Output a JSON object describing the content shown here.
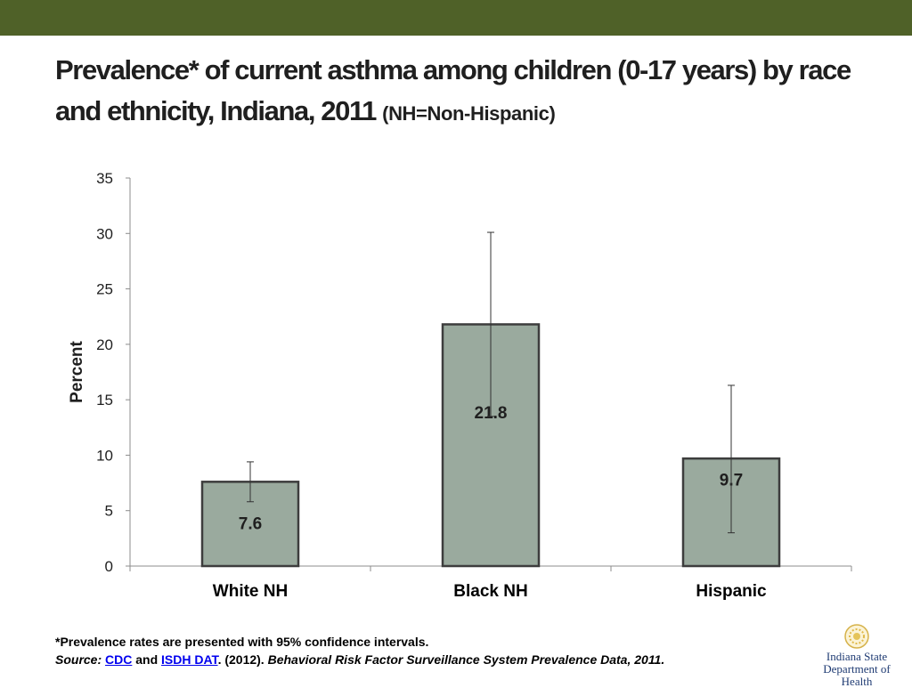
{
  "slide": {
    "title_main": "Prevalence* of current asthma among children (0-17 years) by race and ethnicity, Indiana, 2011",
    "title_sub": "(NH=Non-Hispanic)"
  },
  "colors": {
    "top_bar": "#4f6128",
    "bar_fill": "#9aaa9e",
    "bar_stroke": "#3d3d3d"
  },
  "chart_data": {
    "type": "bar",
    "categories": [
      "White NH",
      "Black NH",
      "Hispanic"
    ],
    "values": [
      7.6,
      21.8,
      9.7
    ],
    "data_labels": [
      "7.6",
      "21.8",
      "9.7"
    ],
    "error_bars": {
      "lower": [
        5.8,
        13.5,
        3.0
      ],
      "upper": [
        9.4,
        30.1,
        16.3
      ]
    },
    "ylabel": "Percent",
    "ylim": [
      0,
      35
    ],
    "yticks": [
      0,
      5,
      10,
      15,
      20,
      25,
      30,
      35
    ],
    "grid": false,
    "legend": "none"
  },
  "footer": {
    "note": "*Prevalence rates are presented with 95% confidence intervals.",
    "source_label": "Source:",
    "cdc_link": "CDC",
    "and_text": "and",
    "isdh_link": "ISDH DAT",
    "year_text": ". (2012).",
    "citation": "Behavioral Risk Factor Surveillance System Prevalence Data, 2011."
  },
  "logo": {
    "line1": "Indiana State",
    "line2": "Department of Health",
    "icon": "state-seal-icon"
  }
}
